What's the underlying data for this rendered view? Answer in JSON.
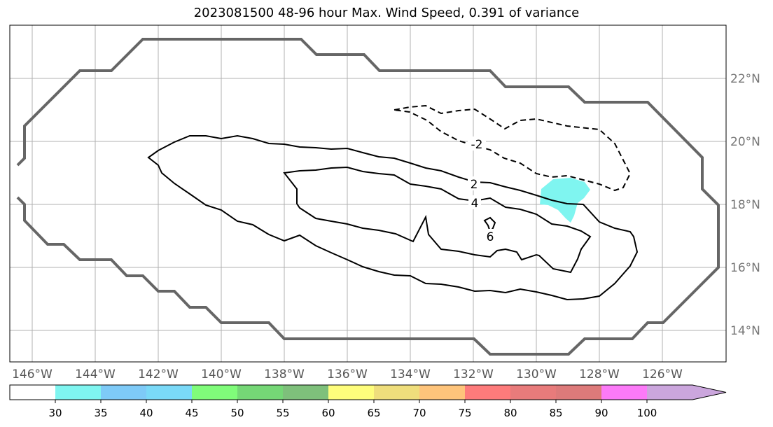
{
  "title": "2023081500 48-96 hour Max. Wind Speed, 0.391 of variance",
  "map": {
    "lon_ticks": [
      "146°W",
      "144°W",
      "142°W",
      "140°W",
      "138°W",
      "136°W",
      "134°W",
      "132°W",
      "130°W",
      "128°W",
      "126°W"
    ],
    "lat_ticks": [
      "22°N",
      "20°N",
      "18°N",
      "16°N",
      "14°N"
    ],
    "grid": true,
    "contour_labels": [
      "-2",
      "2",
      "4",
      "6"
    ],
    "shading_color": "#7ff5f0",
    "contour_color": "#000000",
    "boundary_color": "#666666"
  },
  "colorbar": {
    "ticks": [
      "30",
      "35",
      "40",
      "45",
      "50",
      "55",
      "60",
      "65",
      "70",
      "75",
      "80",
      "85",
      "90",
      "100"
    ],
    "colors": [
      "#ffffff",
      "#7ff5f0",
      "#7ecaf7",
      "#7ad9f7",
      "#80fc7a",
      "#75d776",
      "#7ec07b",
      "#fefd7c",
      "#efde7c",
      "#fec47b",
      "#fd7b7b",
      "#e87b7b",
      "#dd7a7a",
      "#fc7af8",
      "#cba6dd"
    ],
    "extend": "max"
  }
}
